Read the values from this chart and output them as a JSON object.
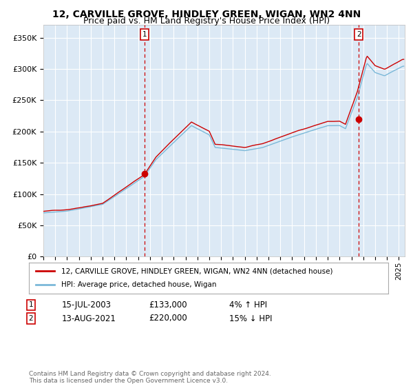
{
  "title": "12, CARVILLE GROVE, HINDLEY GREEN, WIGAN, WN2 4NN",
  "subtitle": "Price paid vs. HM Land Registry's House Price Index (HPI)",
  "ylim": [
    0,
    370000
  ],
  "xlim_start": 1995.0,
  "xlim_end": 2025.5,
  "plot_bg_color": "#dce9f5",
  "grid_color": "#ffffff",
  "sale1_date": 2003.542,
  "sale1_price": 133000,
  "sale1_label": "1",
  "sale2_date": 2021.625,
  "sale2_price": 220000,
  "sale2_label": "2",
  "legend_line1": "12, CARVILLE GROVE, HINDLEY GREEN, WIGAN, WN2 4NN (detached house)",
  "legend_line2": "HPI: Average price, detached house, Wigan",
  "annotation1_date": "15-JUL-2003",
  "annotation1_price": "£133,000",
  "annotation1_hpi": "4% ↑ HPI",
  "annotation2_date": "13-AUG-2021",
  "annotation2_price": "£220,000",
  "annotation2_hpi": "15% ↓ HPI",
  "footer": "Contains HM Land Registry data © Crown copyright and database right 2024.\nThis data is licensed under the Open Government Licence v3.0.",
  "hpi_color": "#7ab8d8",
  "price_color": "#cc0000",
  "marker_color": "#cc0000",
  "vline_color": "#cc0000",
  "title_fontsize": 10,
  "subtitle_fontsize": 9,
  "ytick_labels": [
    "£0",
    "£50K",
    "£100K",
    "£150K",
    "£200K",
    "£250K",
    "£300K",
    "£350K"
  ],
  "ytick_values": [
    0,
    50000,
    100000,
    150000,
    200000,
    250000,
    300000,
    350000
  ]
}
